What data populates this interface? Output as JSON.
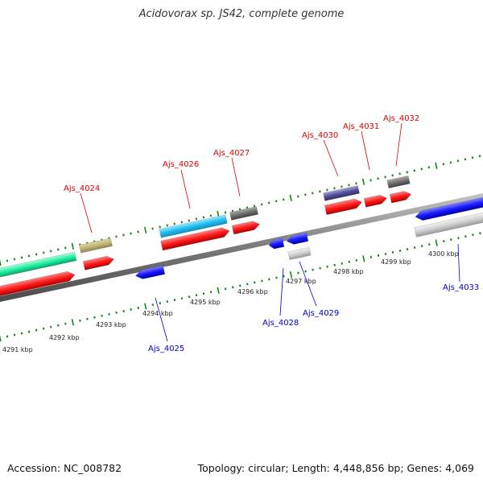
{
  "title": "Acidovorax sp. JS42, complete genome",
  "footer": {
    "accession": "Accession: NC_008782",
    "topology": "Topology: circular; Length: 4,448,856 bp; Genes: 4,069"
  },
  "colors": {
    "forward_label": "#dd0000",
    "reverse_label": "#0000cc",
    "tick": "#118811",
    "backbone": "#7a7a7a",
    "cds": "#ff1a1a",
    "reverse_cds": "#1a1aff"
  },
  "scale_labels": [
    "4291 kbp",
    "4292 kbp",
    "4293 kbp",
    "4294 kbp",
    "4295 kbp",
    "4296 kbp",
    "4297 kbp",
    "4298 kbp",
    "4299 kbp",
    "4300 kbp"
  ],
  "forward_labels": [
    "Ajs_4024",
    "Ajs_4026",
    "Ajs_4027",
    "Ajs_4030",
    "Ajs_4031",
    "Ajs_4032"
  ],
  "reverse_labels": [
    "Ajs_4025",
    "Ajs_4028",
    "Ajs_4029",
    "Ajs_4033"
  ]
}
